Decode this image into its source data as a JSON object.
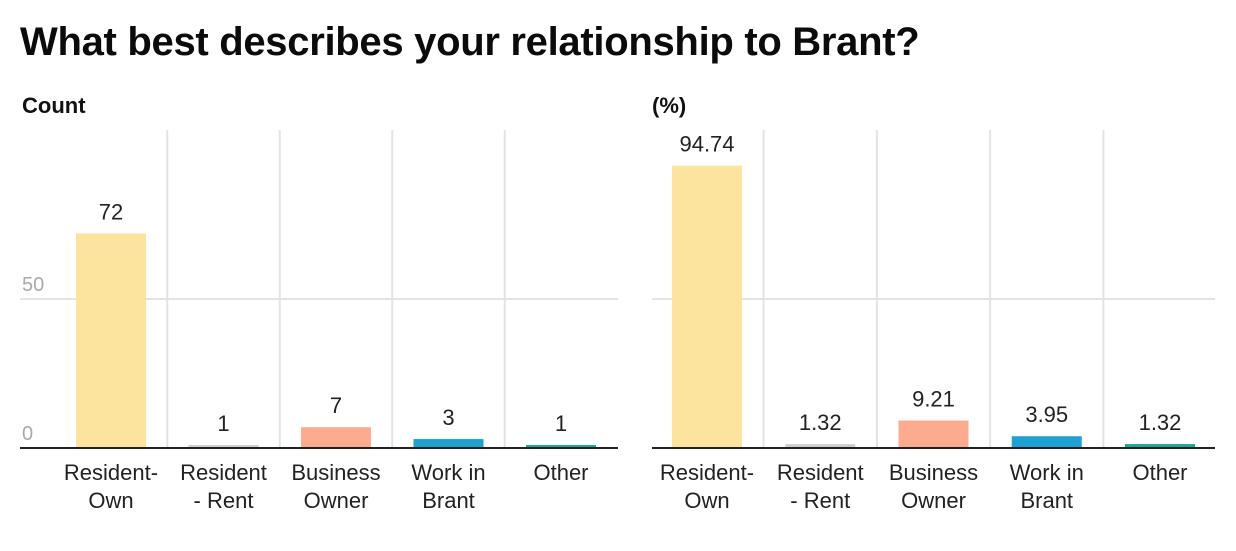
{
  "title": "What best describes your relationship to Brant?",
  "chart_data": [
    {
      "type": "bar",
      "title": "",
      "ylabel": "Count",
      "xlabel": "",
      "categories": [
        [
          "Resident-",
          "Own"
        ],
        [
          "Resident",
          "- Rent"
        ],
        [
          "Business",
          "Owner"
        ],
        [
          "Work in",
          "Brant"
        ],
        [
          "Other"
        ]
      ],
      "values": [
        72,
        1,
        7,
        3,
        1
      ],
      "value_labels": [
        "72",
        "1",
        "7",
        "3",
        "1"
      ],
      "colors": [
        "#fde49e",
        "#cfcfcf",
        "#fbab8e",
        "#1fa2d1",
        "#18a89a"
      ],
      "ylim": [
        0,
        100
      ],
      "yticks": [
        0,
        50
      ],
      "ytick_labels": [
        "0",
        "50"
      ],
      "grid": true
    },
    {
      "type": "bar",
      "title": "",
      "ylabel": "(%)",
      "xlabel": "",
      "categories": [
        [
          "Resident-",
          "Own"
        ],
        [
          "Resident",
          "- Rent"
        ],
        [
          "Business",
          "Owner"
        ],
        [
          "Work in",
          "Brant"
        ],
        [
          "Other"
        ]
      ],
      "values": [
        94.74,
        1.32,
        9.21,
        3.95,
        1.32
      ],
      "value_labels": [
        "94.74",
        "1.32",
        "9.21",
        "3.95",
        "1.32"
      ],
      "colors": [
        "#fde49e",
        "#cfcfcf",
        "#fbab8e",
        "#1fa2d1",
        "#18a89a"
      ],
      "ylim": [
        0,
        100
      ],
      "yticks": [
        0,
        50
      ],
      "ytick_labels": [
        "",
        ""
      ],
      "grid": true
    }
  ]
}
